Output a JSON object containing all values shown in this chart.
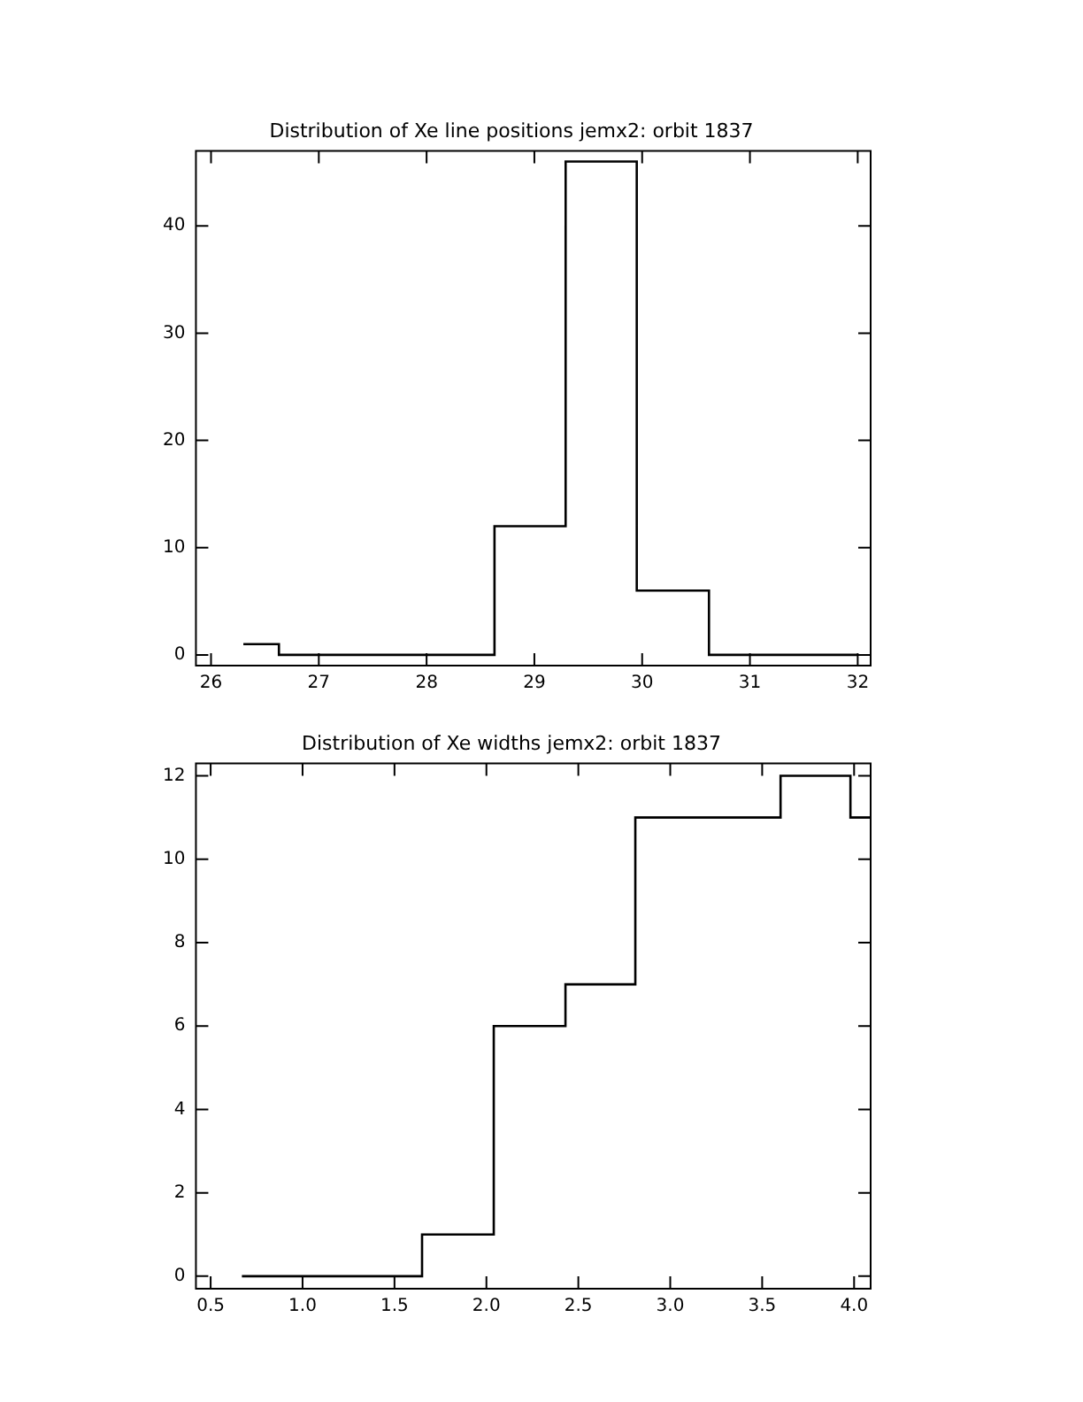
{
  "chart_data": [
    {
      "type": "histogram",
      "title": "Distribution of Xe line positions jemx2: orbit 1837",
      "bins": [
        26.3,
        26.63,
        28.63,
        29.29,
        29.95,
        30.62,
        32.0
      ],
      "values": [
        1,
        0,
        12,
        46,
        6,
        0
      ],
      "color": "#000000",
      "xlim": [
        25.86,
        32.12
      ],
      "ylim": [
        -1,
        47
      ],
      "xticks": [
        26,
        27,
        28,
        29,
        30,
        31,
        32
      ],
      "yticks": [
        0,
        10,
        20,
        30,
        40
      ],
      "grid": false
    },
    {
      "type": "histogram",
      "title": "Distribution of Xe widths jemx2: orbit 1837",
      "bins": [
        0.67,
        1.65,
        2.04,
        2.43,
        2.81,
        3.6,
        3.98,
        4.09
      ],
      "values": [
        0,
        1,
        6,
        7,
        11,
        12,
        11
      ],
      "color": "#000000",
      "xlim": [
        0.42,
        4.09
      ],
      "ylim": [
        -0.3,
        12.3
      ],
      "xticks": [
        0.5,
        {
          "value": 1,
          "label": "1.0"
        },
        1.5,
        {
          "value": 2,
          "label": "2.0"
        },
        2.5,
        {
          "value": 3,
          "label": "3.0"
        },
        3.5,
        {
          "value": 4,
          "label": "4.0"
        }
      ],
      "yticks": [
        0,
        2,
        4,
        6,
        8,
        10,
        12
      ],
      "grid": false
    }
  ]
}
